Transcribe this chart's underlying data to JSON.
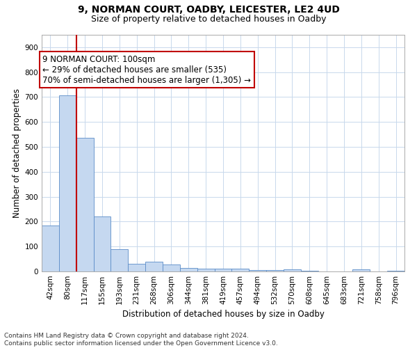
{
  "title1": "9, NORMAN COURT, OADBY, LEICESTER, LE2 4UD",
  "title2": "Size of property relative to detached houses in Oadby",
  "xlabel": "Distribution of detached houses by size in Oadby",
  "ylabel": "Number of detached properties",
  "categories": [
    "42sqm",
    "80sqm",
    "117sqm",
    "155sqm",
    "193sqm",
    "231sqm",
    "268sqm",
    "306sqm",
    "344sqm",
    "381sqm",
    "419sqm",
    "457sqm",
    "494sqm",
    "532sqm",
    "570sqm",
    "608sqm",
    "645sqm",
    "683sqm",
    "721sqm",
    "758sqm",
    "796sqm"
  ],
  "values": [
    185,
    707,
    537,
    220,
    90,
    30,
    40,
    27,
    15,
    11,
    11,
    10,
    5,
    5,
    8,
    2,
    1,
    1,
    8,
    1,
    2
  ],
  "bar_color": "#c5d8f0",
  "bar_edge_color": "#5b8cc8",
  "vline_x": 1.5,
  "vline_color": "#c00000",
  "annotation_text_line1": "9 NORMAN COURT: 100sqm",
  "annotation_text_line2": "← 29% of detached houses are smaller (535)",
  "annotation_text_line3": "70% of semi-detached houses are larger (1,305) →",
  "ylim": [
    0,
    950
  ],
  "yticks": [
    0,
    100,
    200,
    300,
    400,
    500,
    600,
    700,
    800,
    900
  ],
  "footnote": "Contains HM Land Registry data © Crown copyright and database right 2024.\nContains public sector information licensed under the Open Government Licence v3.0.",
  "background_color": "#ffffff",
  "grid_color": "#c8d8ec",
  "title1_fontsize": 10,
  "title2_fontsize": 9,
  "annot_fontsize": 8.5,
  "xlabel_fontsize": 8.5,
  "ylabel_fontsize": 8.5,
  "tick_fontsize": 7.5,
  "footnote_fontsize": 6.5
}
